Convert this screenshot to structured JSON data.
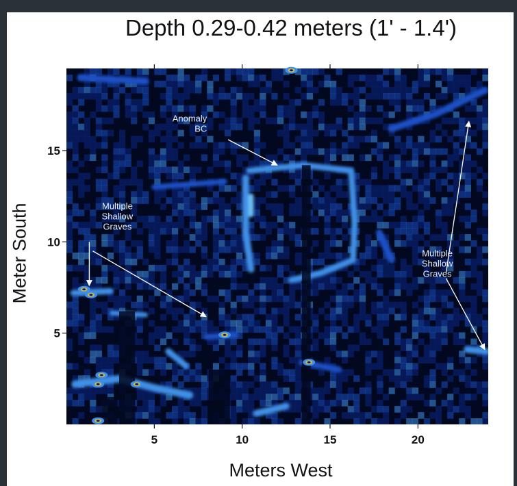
{
  "chart_data": {
    "type": "heatmap",
    "title": "Depth 0.29-0.42 meters (1' - 1.4')",
    "xlabel": "Meters West",
    "ylabel": "Meter South",
    "xlim": [
      0,
      24
    ],
    "ylim": [
      0,
      19.5
    ],
    "x_ticks": [
      5,
      10,
      15,
      20
    ],
    "y_ticks": [
      5,
      10,
      15
    ],
    "colormap": [
      "#02081f",
      "#0a1f6e",
      "#1a4fc4",
      "#3f8fe6",
      "#6cc0f2",
      "#c9b84a"
    ],
    "annotations": [
      {
        "text": [
          "Anomaly",
          "BC"
        ],
        "points_to": [
          12,
          14
        ]
      },
      {
        "text": [
          "Multiple",
          "Shallow",
          "Graves"
        ],
        "points_to": [
          [
            1.3,
            7.3
          ],
          [
            8,
            5.8
          ]
        ]
      },
      {
        "text": [
          "Multiple",
          "Shallow",
          "Graves"
        ],
        "points_to": [
          [
            22.8,
            16.8
          ],
          [
            23.8,
            4
          ]
        ]
      }
    ]
  },
  "colors": {
    "background": "#02081f",
    "frame": "#2a3238",
    "arrow": "#ffffff"
  }
}
